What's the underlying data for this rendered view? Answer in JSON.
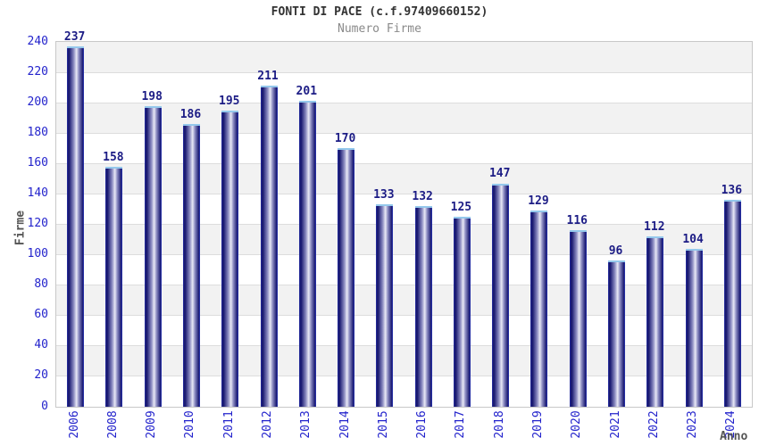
{
  "chart_data": {
    "type": "bar",
    "title": "FONTI DI PACE (c.f.97409660152)",
    "subtitle": "Numero Firme",
    "xlabel": "Anno",
    "ylabel": "Firme",
    "categories": [
      "2006",
      "2008",
      "2009",
      "2010",
      "2011",
      "2012",
      "2013",
      "2014",
      "2015",
      "2016",
      "2017",
      "2018",
      "2019",
      "2020",
      "2021",
      "2022",
      "2023",
      "2024"
    ],
    "values": [
      237,
      158,
      198,
      186,
      195,
      211,
      201,
      170,
      133,
      132,
      125,
      147,
      129,
      116,
      96,
      112,
      104,
      136
    ],
    "ylim": [
      0,
      240
    ],
    "ytick_step": 20,
    "grid": "horizontal-bands-alternating",
    "legend": "none",
    "colors": {
      "bar_edge": "#2b39bd",
      "bar_dark": "#1a1a72",
      "bar_mid": "#8d8dc2",
      "bar_light": "#e9e9f6",
      "bar_cap": "#94c8ec",
      "tick_label": "#2323cc",
      "value_label": "#1c1c85",
      "band_gray": "#f2f2f2",
      "band_white": "#ffffff",
      "gridline": "#dddddd",
      "plot_border": "#c8c8c8",
      "title": "#333333",
      "subtitle": "#8a8a8a",
      "axis_title": "#555555"
    }
  }
}
